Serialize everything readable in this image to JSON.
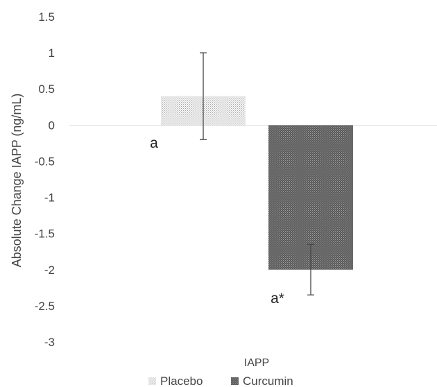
{
  "chart_data": {
    "type": "bar",
    "categories": [
      "IAPP"
    ],
    "xlabel": "IAPP",
    "ylabel": "Absolute Change IAPP (ng/mL)",
    "ylim": [
      -3,
      1.5
    ],
    "yticks": [
      "1.5",
      "1",
      "0.5",
      "0",
      "-0.5",
      "-1",
      "-1.5",
      "-2",
      "-2.5",
      "-3"
    ],
    "grid": false,
    "legend_position": "bottom",
    "series": [
      {
        "name": "Placebo",
        "values": [
          0.4
        ],
        "error_low": [
          -0.2
        ],
        "error_high": [
          1.0
        ],
        "annotation": "a",
        "color": "#d4d4d4"
      },
      {
        "name": "Curcumin",
        "values": [
          -2.0
        ],
        "error_low": [
          -2.35
        ],
        "error_high": [
          -1.65
        ],
        "annotation": "a*",
        "color": "#6e6e6e"
      }
    ]
  }
}
